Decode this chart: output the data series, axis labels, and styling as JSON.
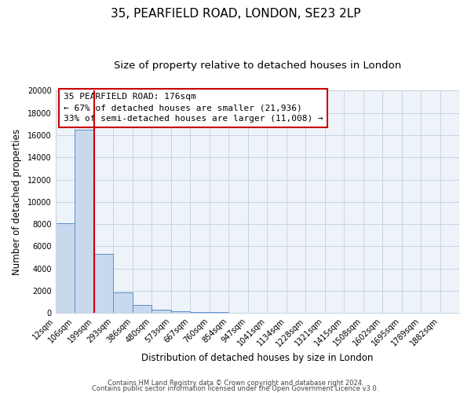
{
  "title": "35, PEARFIELD ROAD, LONDON, SE23 2LP",
  "subtitle": "Size of property relative to detached houses in London",
  "xlabel": "Distribution of detached houses by size in London",
  "ylabel": "Number of detached properties",
  "bar_labels": [
    "12sqm",
    "106sqm",
    "199sqm",
    "293sqm",
    "386sqm",
    "480sqm",
    "573sqm",
    "667sqm",
    "760sqm",
    "854sqm",
    "947sqm",
    "1041sqm",
    "1134sqm",
    "1228sqm",
    "1321sqm",
    "1415sqm",
    "1508sqm",
    "1602sqm",
    "1695sqm",
    "1789sqm",
    "1882sqm"
  ],
  "bar_values": [
    8100,
    16500,
    5300,
    1850,
    750,
    300,
    170,
    100,
    80,
    50,
    0,
    0,
    0,
    0,
    0,
    0,
    0,
    0,
    0,
    0,
    0
  ],
  "bar_color": "#c8d9ee",
  "bar_edge_color": "#5b8fc9",
  "vline_x_bar": 2,
  "vline_color": "#cc0000",
  "annotation_title": "35 PEARFIELD ROAD: 176sqm",
  "annotation_line1": "← 67% of detached houses are smaller (21,936)",
  "annotation_line2": "33% of semi-detached houses are larger (11,008) →",
  "annotation_box_color": "#ffffff",
  "annotation_box_edge": "#cc0000",
  "ylim": [
    0,
    20000
  ],
  "yticks": [
    0,
    2000,
    4000,
    6000,
    8000,
    10000,
    12000,
    14000,
    16000,
    18000,
    20000
  ],
  "grid_color": "#c8d4e3",
  "background_color": "#eef3f9",
  "footer_line1": "Contains HM Land Registry data © Crown copyright and database right 2024.",
  "footer_line2": "Contains public sector information licensed under the Open Government Licence v3.0.",
  "title_fontsize": 11,
  "subtitle_fontsize": 9.5,
  "axis_label_fontsize": 8.5,
  "tick_fontsize": 7,
  "annotation_title_fontsize": 8.5,
  "annotation_text_fontsize": 8,
  "footer_fontsize": 6
}
